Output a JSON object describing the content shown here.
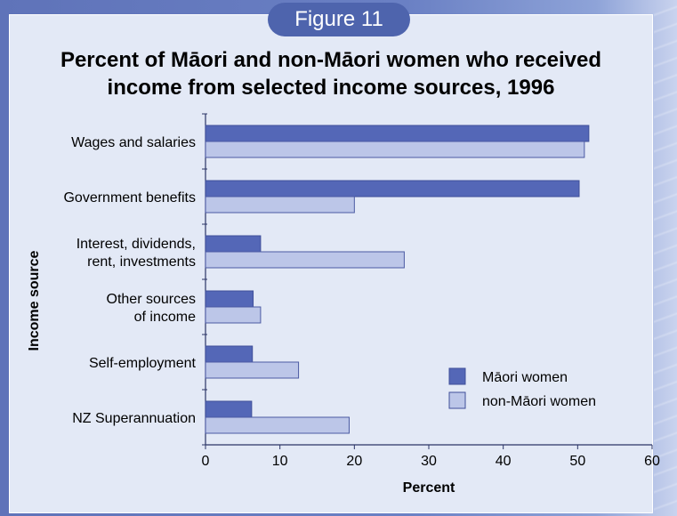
{
  "badge": "Figure 11",
  "title_lines": [
    "Percent of Māori and non-Māori women who received",
    "income from selected income sources, 1996"
  ],
  "colors": {
    "maori": "#5467b7",
    "non_maori": "#bcc6e8",
    "panel": "#e3e9f6",
    "badge": "#4e64ad"
  },
  "chart_data": {
    "type": "bar",
    "orientation": "horizontal",
    "title": "Percent of Māori and non-Māori women who received income from selected income sources, 1996",
    "xlabel": "Percent",
    "ylabel": "Income source",
    "xlim": [
      0,
      60
    ],
    "xticks": [
      0,
      10,
      20,
      30,
      40,
      50,
      60
    ],
    "legend_position": "bottom-right",
    "grid": false,
    "categories": [
      [
        "Wages and salaries"
      ],
      [
        "Government benefits"
      ],
      [
        "Interest, dividends,",
        "rent, investments"
      ],
      [
        "Other sources",
        "of income"
      ],
      [
        "Self-employment"
      ],
      [
        "NZ Superannuation"
      ]
    ],
    "series": [
      {
        "name": "Māori women",
        "values": [
          51.5,
          50.2,
          7.4,
          6.4,
          6.3,
          6.2
        ]
      },
      {
        "name": "non-Māori women",
        "values": [
          50.9,
          20.0,
          26.7,
          7.4,
          12.5,
          19.3
        ]
      }
    ]
  }
}
